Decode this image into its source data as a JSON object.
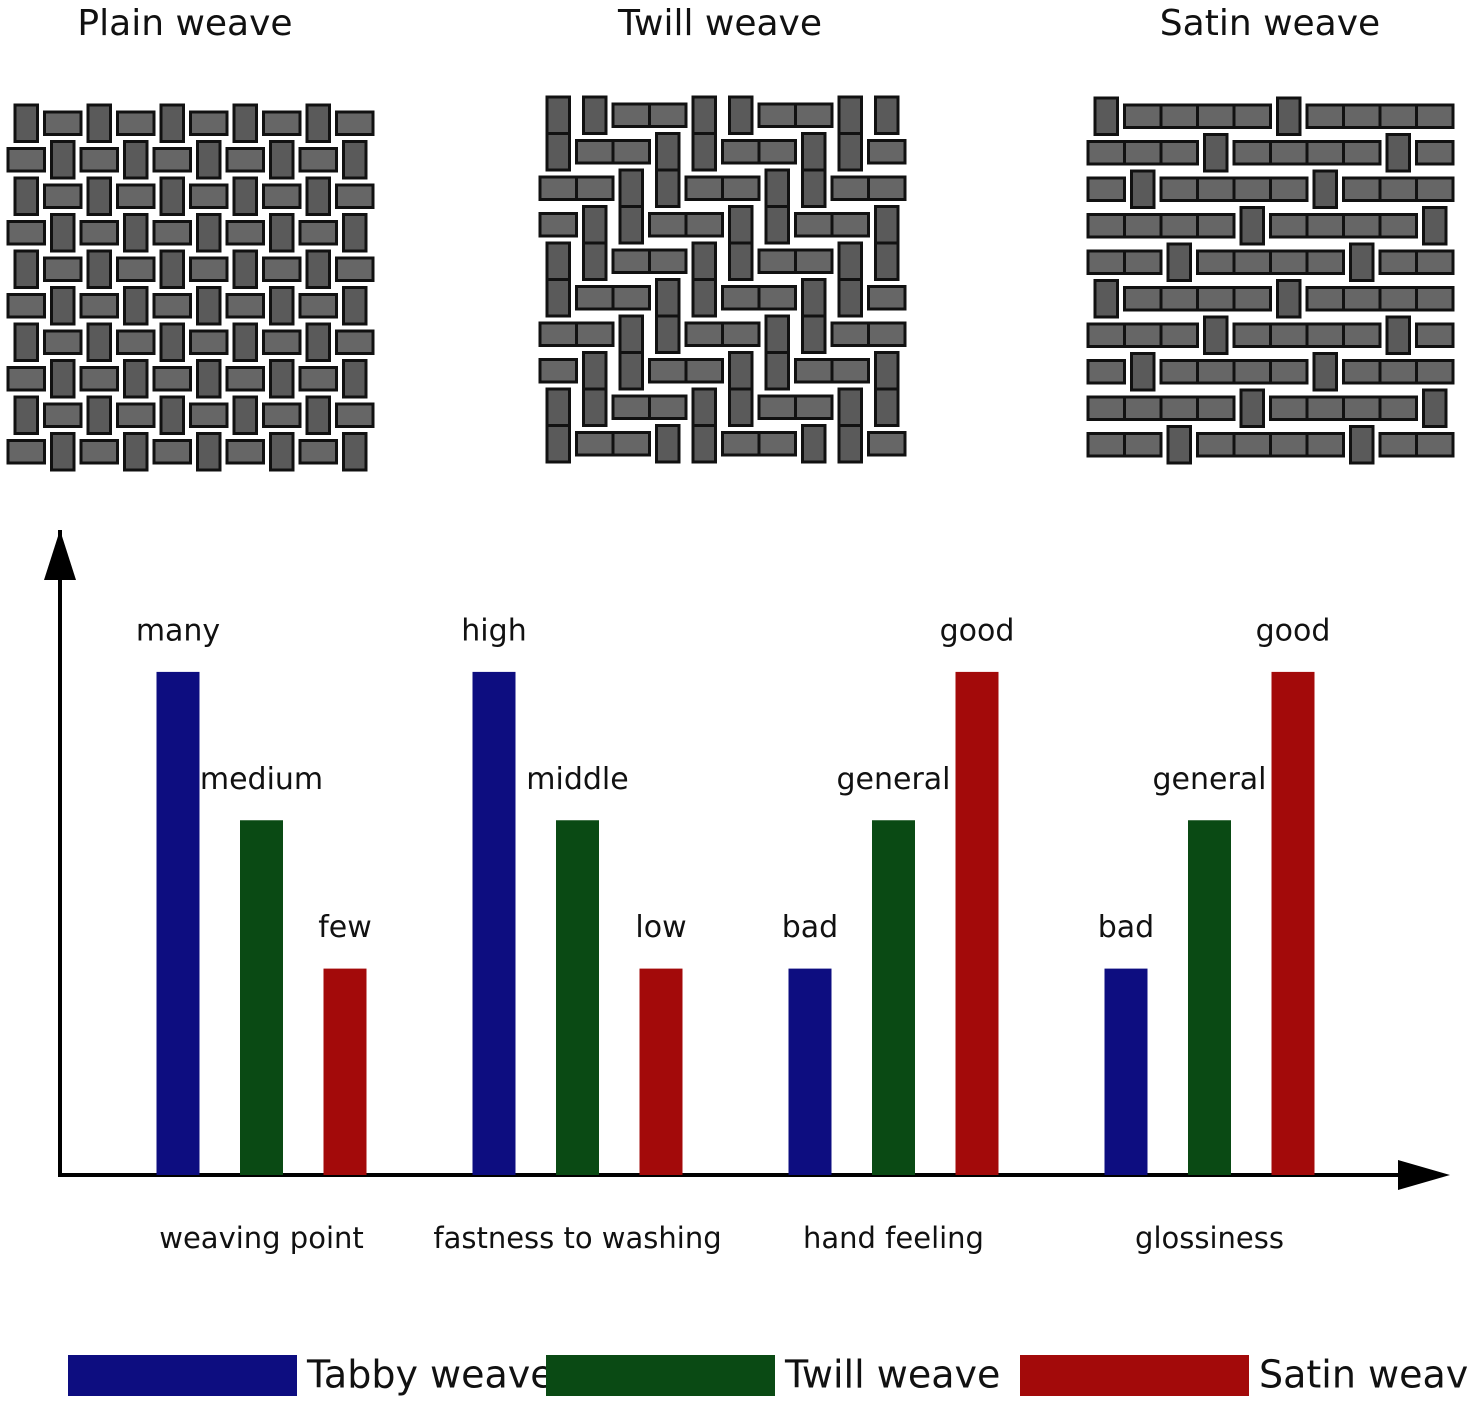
{
  "weave_panels": [
    "Plain weave",
    "Twill weave",
    "Satin weave"
  ],
  "chart_data": {
    "type": "bar",
    "categories": [
      "weaving point",
      "fastness to washing",
      "hand feeling",
      "glossiness"
    ],
    "series": [
      {
        "name": "Tabby weave",
        "color": "#0d0d80",
        "values": [
          78,
          78,
          32,
          32
        ],
        "value_labels": [
          "many",
          "high",
          "bad",
          "bad"
        ]
      },
      {
        "name": "Twill weave",
        "color": "#0a4a14",
        "values": [
          55,
          55,
          55,
          55
        ],
        "value_labels": [
          "medium",
          "middle",
          "general",
          "general"
        ]
      },
      {
        "name": "Satin weave",
        "color": "#a30a0a",
        "values": [
          32,
          32,
          78,
          78
        ],
        "value_labels": [
          "few",
          "low",
          "good",
          "good"
        ]
      }
    ],
    "ylim": [
      0,
      100
    ]
  }
}
